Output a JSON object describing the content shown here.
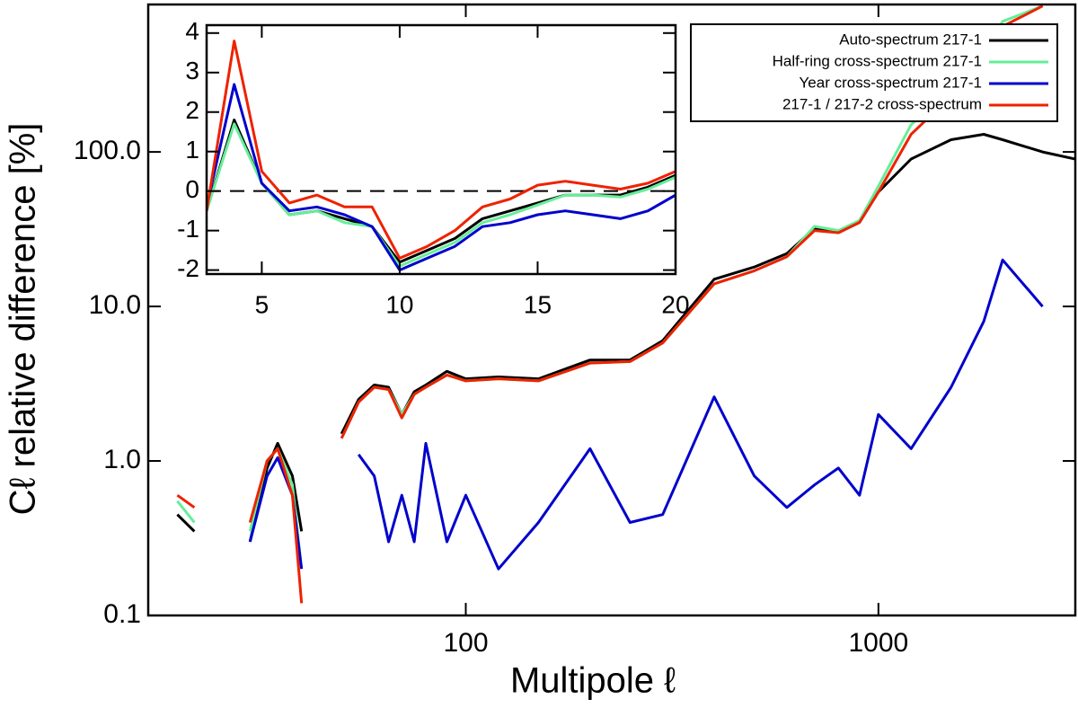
{
  "chart_data": [
    {
      "type": "line",
      "log_x": true,
      "log_y": true,
      "x_label": "Multipole ℓ",
      "y_label": "Cℓ relative difference [%]",
      "x": [
        20,
        22,
        25,
        28,
        30,
        33,
        35,
        38,
        40,
        45,
        50,
        55,
        60,
        65,
        70,
        75,
        80,
        90,
        100,
        120,
        150,
        200,
        250,
        300,
        400,
        500,
        600,
        700,
        800,
        900,
        1000,
        1200,
        1500,
        1800,
        2000,
        2500,
        3000
      ],
      "xlim": [
        17,
        3000
      ],
      "xticks": [
        100,
        1000
      ],
      "ylim": [
        0.1,
        900
      ],
      "yticks": [
        0.1,
        {
          "value": 1,
          "label": "1.0"
        },
        {
          "value": 10,
          "label": "10.0"
        },
        {
          "value": 100,
          "label": "100.0"
        }
      ],
      "legend": "upper right",
      "series": [
        {
          "name": "Auto-spectrum 217-1",
          "color": "#000000",
          "values": [
            0.45,
            0.35,
            null,
            null,
            0.3,
            0.9,
            1.3,
            0.8,
            0.35,
            null,
            1.5,
            2.5,
            3.1,
            3.0,
            2.0,
            2.8,
            3.1,
            3.8,
            3.4,
            3.5,
            3.4,
            4.5,
            4.5,
            6,
            15,
            18,
            22,
            32,
            30,
            35,
            55,
            90,
            120,
            130,
            120,
            100,
            90
          ]
        },
        {
          "name": "Half-ring cross-spectrum 217-1",
          "color": "#66ee99",
          "values": [
            0.55,
            0.4,
            null,
            null,
            0.35,
            1.0,
            1.2,
            0.7,
            0.2,
            null,
            1.4,
            2.4,
            3.0,
            2.9,
            2.0,
            2.7,
            3.0,
            3.6,
            3.3,
            3.4,
            3.3,
            4.3,
            4.4,
            5.8,
            14,
            17,
            21,
            33,
            31,
            36,
            60,
            150,
            250,
            450,
            700,
            880,
            null
          ]
        },
        {
          "name": "Year cross-spectrum 217-1",
          "color": "#0000cc",
          "values": [
            null,
            null,
            null,
            null,
            0.3,
            0.8,
            1.05,
            0.6,
            0.2,
            null,
            null,
            1.1,
            0.8,
            0.3,
            0.6,
            0.3,
            1.3,
            0.3,
            0.6,
            0.2,
            0.4,
            1.2,
            0.4,
            0.45,
            2.6,
            0.8,
            0.5,
            0.7,
            0.9,
            0.6,
            2.0,
            1.2,
            3,
            8,
            20,
            10,
            null
          ]
        },
        {
          "name": "217-1 / 217-2 cross-spectrum",
          "color": "#ee2200",
          "values": [
            0.6,
            0.5,
            null,
            null,
            0.4,
            1.0,
            1.2,
            0.6,
            0.12,
            null,
            1.4,
            2.4,
            3.0,
            2.9,
            1.9,
            2.7,
            3.0,
            3.6,
            3.3,
            3.4,
            3.3,
            4.3,
            4.4,
            5.8,
            14,
            17,
            21,
            31,
            30,
            35,
            55,
            130,
            230,
            420,
            650,
            880,
            null
          ]
        }
      ]
    },
    {
      "type": "line",
      "x": [
        3,
        4,
        5,
        6,
        7,
        8,
        9,
        10,
        11,
        12,
        13,
        14,
        15,
        16,
        17,
        18,
        19,
        20
      ],
      "xlim": [
        3,
        20
      ],
      "xticks": [
        5,
        10,
        15,
        20
      ],
      "ylim": [
        -2.1,
        4.2
      ],
      "yticks": [
        -2,
        -1,
        0,
        1,
        2,
        3,
        4
      ],
      "zero_line": true,
      "series": [
        {
          "color": "#000000",
          "values": [
            -0.5,
            1.8,
            0.2,
            -0.6,
            -0.5,
            -0.7,
            -0.9,
            -1.8,
            -1.5,
            -1.2,
            -0.7,
            -0.5,
            -0.3,
            -0.1,
            -0.1,
            -0.1,
            0.1,
            0.4
          ]
        },
        {
          "color": "#66ee99",
          "values": [
            -0.5,
            1.7,
            0.2,
            -0.6,
            -0.5,
            -0.8,
            -0.9,
            -1.9,
            -1.6,
            -1.3,
            -0.8,
            -0.6,
            -0.35,
            -0.1,
            -0.1,
            -0.15,
            0.05,
            0.35
          ]
        },
        {
          "color": "#0000cc",
          "values": [
            -0.4,
            2.7,
            0.2,
            -0.5,
            -0.4,
            -0.6,
            -0.9,
            -2.0,
            -1.7,
            -1.4,
            -0.9,
            -0.8,
            -0.6,
            -0.5,
            -0.6,
            -0.7,
            -0.5,
            -0.1
          ]
        },
        {
          "color": "#ee2200",
          "values": [
            -0.5,
            3.8,
            0.5,
            -0.3,
            -0.1,
            -0.4,
            -0.4,
            -1.7,
            -1.4,
            -1.0,
            -0.4,
            -0.2,
            0.15,
            0.25,
            0.15,
            0.05,
            0.2,
            0.5
          ]
        }
      ]
    }
  ]
}
